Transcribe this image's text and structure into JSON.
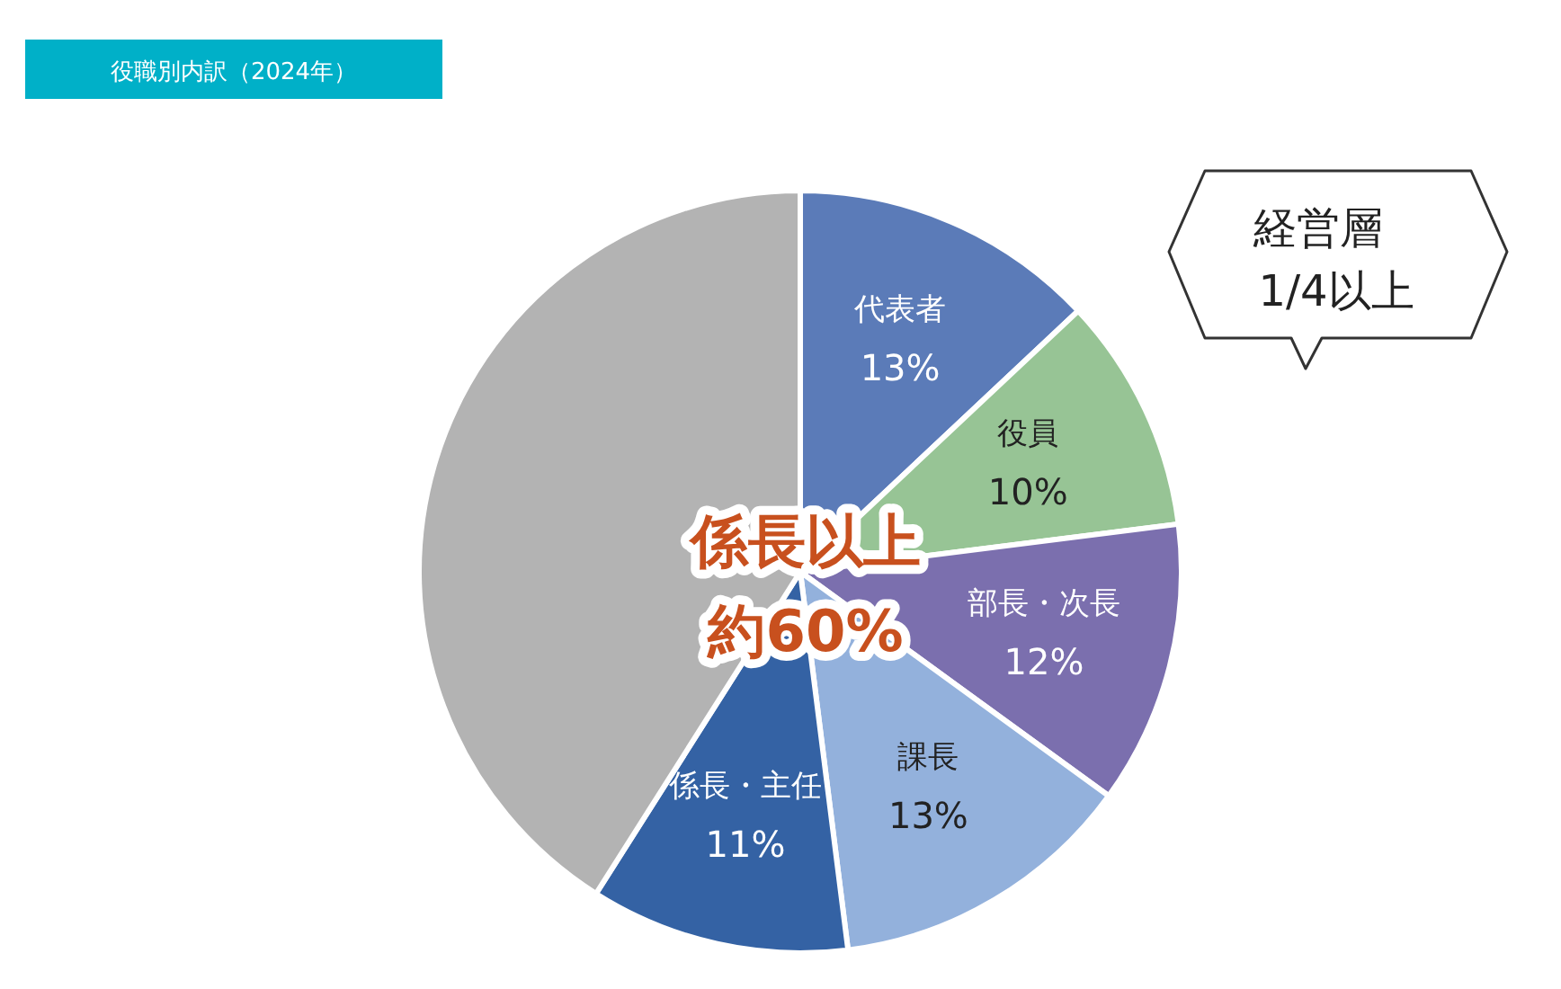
{
  "chart_data": {
    "type": "pie",
    "title": "役職別内訳（2024年）",
    "categories": [
      "代表者",
      "役員",
      "部長・次長",
      "課長",
      "係長・主任",
      null
    ],
    "values": [
      13,
      10,
      12,
      13,
      11,
      41
    ],
    "value_labels": [
      "13%",
      "10%",
      "12%",
      "13%",
      "11%",
      null
    ],
    "colors": [
      "#5b7bb8",
      "#97c495",
      "#7b6fae",
      "#93b1dc",
      "#3462a4",
      "#b3b3b3"
    ],
    "annotations": [
      "係長以上",
      "約60%",
      "経営層",
      "1/4以上"
    ]
  }
}
